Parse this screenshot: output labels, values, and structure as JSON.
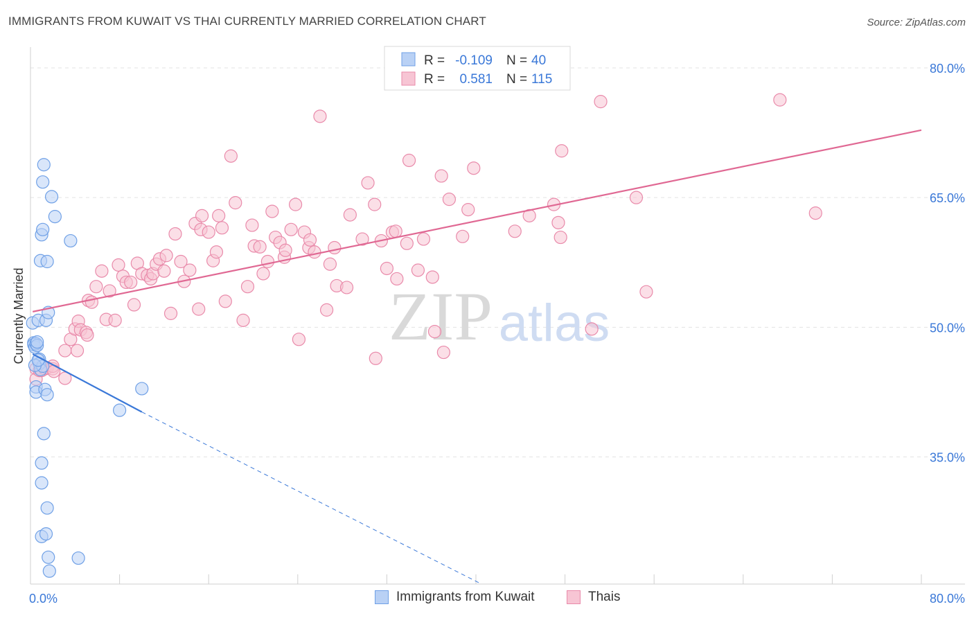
{
  "header": {
    "title": "IMMIGRANTS FROM KUWAIT VS THAI CURRENTLY MARRIED CORRELATION CHART",
    "source": "Source: ZipAtlas.com"
  },
  "colors": {
    "blue_fill": "#b9d1f5",
    "blue_stroke": "#6fa0e6",
    "blue_line": "#3a78d8",
    "pink_fill": "#f7c5d4",
    "pink_stroke": "#e98aaa",
    "pink_line": "#e06893",
    "tick_label": "#3a78d8",
    "grid": "#e3e3e3",
    "watermark": "#d6d6d6"
  },
  "legend_stats": [
    {
      "r_label": "R =",
      "r_value": "-0.109",
      "n_label": "N =",
      "n_value": "40",
      "series": "blue"
    },
    {
      "r_label": "R =",
      "r_value": "0.581",
      "n_label": "N =",
      "n_value": "115",
      "series": "pink"
    }
  ],
  "watermark": {
    "zip": "ZIP",
    "atlas": "atlas"
  },
  "chart_data": {
    "type": "scatter",
    "title": "IMMIGRANTS FROM KUWAIT VS THAI CURRENTLY MARRIED CORRELATION CHART",
    "xlabel": "",
    "ylabel": "Currently Married",
    "xlim": [
      0,
      80
    ],
    "ylim": [
      20.3,
      82.4
    ],
    "x_tick_labels": [
      "0.0%",
      "80.0%"
    ],
    "y_ticks": [
      35,
      50,
      65,
      80
    ],
    "y_tick_labels": [
      "35.0%",
      "50.0%",
      "65.0%",
      "80.0%"
    ],
    "legend_position": "bottom",
    "series": [
      {
        "name": "Immigrants from Kuwait",
        "color": "blue",
        "points": [
          [
            0.2,
            50.5
          ],
          [
            0.3,
            48.2
          ],
          [
            0.3,
            48.0
          ],
          [
            0.4,
            47.7
          ],
          [
            0.5,
            48.1
          ],
          [
            0.5,
            43.1
          ],
          [
            0.5,
            42.5
          ],
          [
            0.6,
            47.9
          ],
          [
            0.6,
            48.3
          ],
          [
            0.7,
            50.8
          ],
          [
            0.8,
            46.3
          ],
          [
            0.8,
            45.8
          ],
          [
            0.9,
            45.1
          ],
          [
            0.9,
            57.7
          ],
          [
            1.0,
            60.7
          ],
          [
            1.0,
            34.3
          ],
          [
            1.0,
            32.0
          ],
          [
            1.0,
            25.8
          ],
          [
            1.1,
            61.3
          ],
          [
            1.1,
            66.8
          ],
          [
            1.1,
            45.5
          ],
          [
            1.2,
            68.8
          ],
          [
            1.2,
            37.7
          ],
          [
            1.3,
            42.8
          ],
          [
            1.4,
            26.1
          ],
          [
            1.4,
            50.8
          ],
          [
            1.5,
            57.6
          ],
          [
            1.5,
            29.1
          ],
          [
            1.5,
            42.2
          ],
          [
            1.6,
            51.7
          ],
          [
            1.6,
            23.4
          ],
          [
            1.7,
            21.8
          ],
          [
            1.9,
            65.1
          ],
          [
            2.2,
            62.8
          ],
          [
            3.6,
            60.0
          ],
          [
            4.3,
            23.3
          ],
          [
            8.0,
            40.4
          ],
          [
            10.0,
            42.9
          ],
          [
            0.4,
            45.6
          ],
          [
            0.7,
            46.2
          ]
        ],
        "trend": {
          "x": [
            0.2,
            10.0
          ],
          "y": [
            46.9,
            40.2
          ]
        },
        "trend_dashed": {
          "x": [
            10.0,
            40.5
          ],
          "y": [
            40.2,
            19.5
          ]
        }
      },
      {
        "name": "Thais",
        "color": "pink",
        "points": [
          [
            0.5,
            45.2
          ],
          [
            0.5,
            44.0
          ],
          [
            0.8,
            45.0
          ],
          [
            1.0,
            45.0
          ],
          [
            1.3,
            45.2
          ],
          [
            1.5,
            45.3
          ],
          [
            2.0,
            45.2
          ],
          [
            2.0,
            45.5
          ],
          [
            2.1,
            44.9
          ],
          [
            3.1,
            47.3
          ],
          [
            3.1,
            44.1
          ],
          [
            3.6,
            48.6
          ],
          [
            4.0,
            49.8
          ],
          [
            4.2,
            47.3
          ],
          [
            4.3,
            50.7
          ],
          [
            4.5,
            49.7
          ],
          [
            5.0,
            49.4
          ],
          [
            5.1,
            49.1
          ],
          [
            5.2,
            53.1
          ],
          [
            5.5,
            52.9
          ],
          [
            5.9,
            54.7
          ],
          [
            6.4,
            56.5
          ],
          [
            6.8,
            50.9
          ],
          [
            7.1,
            54.2
          ],
          [
            7.6,
            50.8
          ],
          [
            7.9,
            57.2
          ],
          [
            8.3,
            55.9
          ],
          [
            8.6,
            55.2
          ],
          [
            9.0,
            55.2
          ],
          [
            9.3,
            52.6
          ],
          [
            9.6,
            57.4
          ],
          [
            10.0,
            56.2
          ],
          [
            10.5,
            56.0
          ],
          [
            10.8,
            55.6
          ],
          [
            11.0,
            56.2
          ],
          [
            11.3,
            57.3
          ],
          [
            11.6,
            57.9
          ],
          [
            12.0,
            56.5
          ],
          [
            12.2,
            58.3
          ],
          [
            12.6,
            51.6
          ],
          [
            13.0,
            60.8
          ],
          [
            13.5,
            57.6
          ],
          [
            13.8,
            55.3
          ],
          [
            14.3,
            56.6
          ],
          [
            14.8,
            62.0
          ],
          [
            15.1,
            52.1
          ],
          [
            15.4,
            62.9
          ],
          [
            15.3,
            61.3
          ],
          [
            16.0,
            61.0
          ],
          [
            16.4,
            57.7
          ],
          [
            16.7,
            58.7
          ],
          [
            16.9,
            62.9
          ],
          [
            17.2,
            61.5
          ],
          [
            17.5,
            53.0
          ],
          [
            18.0,
            69.8
          ],
          [
            18.4,
            64.4
          ],
          [
            19.1,
            50.8
          ],
          [
            19.5,
            54.7
          ],
          [
            19.9,
            61.8
          ],
          [
            20.1,
            59.4
          ],
          [
            20.6,
            59.3
          ],
          [
            20.9,
            56.2
          ],
          [
            21.3,
            57.6
          ],
          [
            21.7,
            63.4
          ],
          [
            22.0,
            60.4
          ],
          [
            22.4,
            59.8
          ],
          [
            22.8,
            58.1
          ],
          [
            22.9,
            58.9
          ],
          [
            23.4,
            61.3
          ],
          [
            23.8,
            64.2
          ],
          [
            24.1,
            48.6
          ],
          [
            24.6,
            61.0
          ],
          [
            25.0,
            59.2
          ],
          [
            25.1,
            60.1
          ],
          [
            25.5,
            58.7
          ],
          [
            26.0,
            74.4
          ],
          [
            26.6,
            52.0
          ],
          [
            26.9,
            57.3
          ],
          [
            27.3,
            59.2
          ],
          [
            27.5,
            54.8
          ],
          [
            28.4,
            54.6
          ],
          [
            28.7,
            63.0
          ],
          [
            29.8,
            60.2
          ],
          [
            30.3,
            66.7
          ],
          [
            30.9,
            64.2
          ],
          [
            31.0,
            46.4
          ],
          [
            31.5,
            60.0
          ],
          [
            32.0,
            56.8
          ],
          [
            32.5,
            61.0
          ],
          [
            32.8,
            61.1
          ],
          [
            32.9,
            55.6
          ],
          [
            33.8,
            59.7
          ],
          [
            34.0,
            69.3
          ],
          [
            34.8,
            56.6
          ],
          [
            35.3,
            60.2
          ],
          [
            36.1,
            55.8
          ],
          [
            36.3,
            49.5
          ],
          [
            36.9,
            67.5
          ],
          [
            37.1,
            47.1
          ],
          [
            37.6,
            64.8
          ],
          [
            38.8,
            60.5
          ],
          [
            39.3,
            63.6
          ],
          [
            39.8,
            68.4
          ],
          [
            43.5,
            61.1
          ],
          [
            44.8,
            62.9
          ],
          [
            47.0,
            64.2
          ],
          [
            47.4,
            62.1
          ],
          [
            47.6,
            60.4
          ],
          [
            47.7,
            70.4
          ],
          [
            50.4,
            49.8
          ],
          [
            51.2,
            76.1
          ],
          [
            54.4,
            65.0
          ],
          [
            55.3,
            54.1
          ],
          [
            67.3,
            76.3
          ],
          [
            70.5,
            63.2
          ]
        ],
        "trend": {
          "x": [
            0.2,
            80.0
          ],
          "y": [
            51.8,
            72.8
          ]
        }
      }
    ]
  }
}
